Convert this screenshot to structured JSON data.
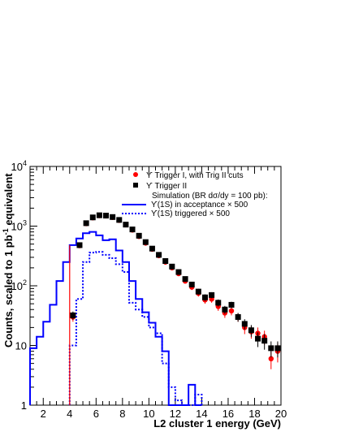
{
  "chart_data": {
    "type": "scatter",
    "title": "",
    "xlabel": "L2 cluster 1 energy (GeV)",
    "ylabel": "Counts, scaled to 1 pb",
    "ylabel_sup": "-1",
    "ylabel_suffix": " equivalent",
    "xlim": [
      1,
      20
    ],
    "ylim": [
      1,
      10000
    ],
    "yscale": "log",
    "grid": false,
    "legend_position": "top-right",
    "x_ticks": [
      2,
      4,
      6,
      8,
      10,
      12,
      14,
      16,
      18,
      20
    ],
    "x_tick_labels": [
      "2",
      "4",
      "6",
      "8",
      "10",
      "12",
      "14",
      "16",
      "18",
      "20"
    ],
    "y_ticks": [
      1,
      10,
      100,
      1000,
      10000
    ],
    "y_tick_labels": [
      {
        "base": "1",
        "exp": ""
      },
      {
        "base": "10",
        "exp": ""
      },
      {
        "base": "10",
        "exp": "2"
      },
      {
        "base": "10",
        "exp": "3"
      },
      {
        "base": "10",
        "exp": "4"
      }
    ],
    "legend": {
      "trig1": "ϒ Trigger I, with Trig II cuts",
      "trig2": "ϒ Trigger II",
      "sim_header": "Simulation (BR dσ/dy = 100 pb):",
      "acc": "ϒ(1S) in acceptance × 500",
      "trg": "ϒ(1S) triggered × 500"
    },
    "series": [
      {
        "key": "trig1",
        "kind": "points",
        "marker": "circle",
        "color": "#ff0000",
        "x": [
          4.25,
          4.75,
          5.25,
          5.75,
          6.25,
          6.75,
          7.25,
          7.75,
          8.25,
          8.75,
          9.25,
          9.75,
          10.25,
          10.75,
          11.25,
          11.75,
          12.25,
          12.75,
          13.25,
          13.75,
          14.25,
          14.75,
          15.25,
          15.75,
          16.25,
          16.75,
          17.25,
          17.75,
          18.25,
          18.75,
          19.25,
          19.75
        ],
        "y": [
          30,
          470,
          1100,
          1380,
          1500,
          1480,
          1400,
          1250,
          1050,
          860,
          670,
          520,
          410,
          320,
          250,
          200,
          160,
          120,
          95,
          75,
          58,
          60,
          45,
          35,
          38,
          30,
          20,
          17,
          16,
          14,
          6,
          8
        ],
        "yerr": [
          5,
          22,
          33,
          37,
          39,
          38,
          37,
          35,
          32,
          29,
          26,
          23,
          20,
          18,
          16,
          14,
          13,
          11,
          10,
          9,
          8,
          8,
          7,
          6,
          6,
          5,
          4.5,
          4,
          4,
          3.7,
          2,
          2.8
        ]
      },
      {
        "key": "trig2",
        "kind": "points",
        "marker": "square",
        "color": "#000000",
        "x": [
          4.25,
          4.75,
          5.25,
          5.75,
          6.25,
          6.75,
          7.25,
          7.75,
          8.25,
          8.75,
          9.25,
          9.75,
          10.25,
          10.75,
          11.25,
          11.75,
          12.25,
          12.75,
          13.25,
          13.75,
          14.25,
          14.75,
          15.25,
          15.75,
          16.25,
          16.75,
          17.25,
          17.75,
          18.25,
          18.75,
          19.25,
          19.75
        ],
        "y": [
          32,
          480,
          1120,
          1400,
          1520,
          1500,
          1420,
          1270,
          1060,
          880,
          690,
          540,
          420,
          330,
          260,
          210,
          170,
          130,
          105,
          80,
          64,
          70,
          52,
          40,
          48,
          30,
          23,
          18,
          13,
          12,
          9,
          9
        ],
        "yerr": [
          5,
          22,
          33,
          37,
          39,
          38,
          37,
          35,
          32,
          29,
          26,
          23,
          20,
          18,
          16,
          14,
          13,
          11,
          10,
          9,
          8,
          8,
          7,
          6,
          6,
          5,
          4.5,
          4,
          3.6,
          3.5,
          2.7,
          2.7
        ]
      },
      {
        "key": "acc",
        "kind": "histogram",
        "style": "solid",
        "color": "#0000ff",
        "bin_edges": [
          1,
          1.5,
          2,
          2.5,
          3,
          3.5,
          4,
          4.5,
          5,
          5.5,
          6,
          6.5,
          7,
          7.5,
          8,
          8.5,
          9,
          9.5,
          10,
          10.5,
          11,
          11.5,
          12,
          12.5,
          13,
          13.5,
          14
        ],
        "values": [
          9,
          14,
          25,
          48,
          120,
          250,
          480,
          620,
          760,
          800,
          700,
          580,
          600,
          390,
          250,
          120,
          60,
          36,
          24,
          14,
          8,
          1,
          1,
          1,
          2.2,
          1
        ]
      },
      {
        "key": "trg",
        "kind": "histogram",
        "style": "dotted",
        "color": "#0000ff",
        "bin_edges": [
          4,
          4.5,
          5,
          5.5,
          6,
          6.5,
          7,
          7.5,
          8,
          8.5,
          9,
          9.5,
          10,
          10.5,
          11,
          11.5,
          12,
          12.5,
          13,
          13.5,
          14
        ],
        "values": [
          10,
          60,
          250,
          360,
          370,
          330,
          290,
          230,
          170,
          52,
          40,
          30,
          20,
          16,
          5,
          2,
          1.2,
          1,
          1,
          1.5
        ]
      },
      {
        "key": "edge",
        "kind": "edge",
        "color": "#ff0000",
        "x": 4,
        "y": 480
      }
    ]
  }
}
